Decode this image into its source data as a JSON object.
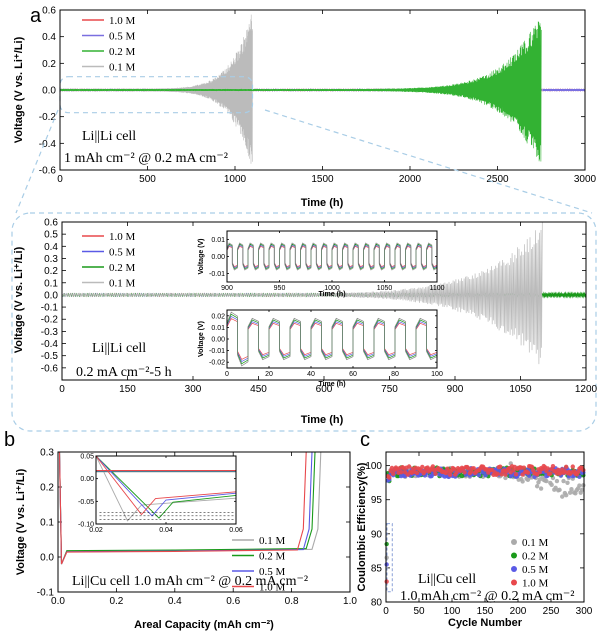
{
  "chart_data": [
    {
      "panel_label": "a",
      "type": "line",
      "xlabel": "Time (h)",
      "ylabel": "Voltage (V vs. Li⁺/Li)",
      "xlim": [
        0,
        3000
      ],
      "ylim": [
        -0.6,
        0.6
      ],
      "xticks": [
        "0",
        "500",
        "1000",
        "1500",
        "2000",
        "2500",
        "3000"
      ],
      "yticks": [
        "-0.6",
        "-0.4",
        "-0.2",
        "0.0",
        "0.2",
        "0.4",
        "0.6"
      ],
      "annotations": [
        "Li||Li cell",
        "1 mAh cm⁻² @ 0.2 mA cm⁻²"
      ],
      "legend_position": "top-left",
      "series": [
        {
          "name": "1.0 M",
          "color": "#e8484c",
          "failure_time_h": 3000,
          "max_amplitude_v": 0.008
        },
        {
          "name": "0.5 M",
          "color": "#7a6fe0",
          "failure_time_h": 3000,
          "max_amplitude_v": 0.008
        },
        {
          "name": "0.2 M",
          "color": "#33b233",
          "failure_time_h": 2750,
          "max_amplitude_v": 0.6
        },
        {
          "name": "0.1 M",
          "color": "#bbbbbb",
          "failure_time_h": 1100,
          "max_amplitude_v": 0.6
        }
      ]
    },
    {
      "type": "line",
      "xlabel": "Time (h)",
      "ylabel": "Voltage (V vs. Li⁺/Li)",
      "xlim": [
        0,
        1200
      ],
      "ylim": [
        -0.7,
        0.6
      ],
      "xticks": [
        "0",
        "150",
        "300",
        "450",
        "600",
        "750",
        "900",
        "1050",
        "1200"
      ],
      "yticks": [
        "-0.6",
        "-0.5",
        "-0.4",
        "-0.3",
        "-0.2",
        "-0.1",
        "0.0",
        "0.1",
        "0.2",
        "0.3",
        "0.4",
        "0.5",
        "0.6"
      ],
      "annotations": [
        "Li||Li cell",
        "0.2 mA cm⁻²-5 h"
      ],
      "legend_position": "top-left",
      "series": [
        {
          "name": "1.0 M",
          "color": "#e8484c"
        },
        {
          "name": "0.5 M",
          "color": "#5a5ae6"
        },
        {
          "name": "0.2 M",
          "color": "#1a9a1a"
        },
        {
          "name": "0.1 M",
          "color": "#bbbbbb",
          "failure_time_h": 1100,
          "max_amplitude_v": 0.6
        }
      ],
      "insets": [
        {
          "xlabel": "Time (h)",
          "ylabel": "Voltage (V)",
          "xlim": [
            900,
            1100
          ],
          "ylim": [
            -0.015,
            0.015
          ],
          "xticks": [
            "900",
            "950",
            "1000",
            "1050",
            "1100"
          ],
          "yticks": [
            "0.01",
            "0.00",
            "-0.01"
          ]
        },
        {
          "xlabel": "Time (h)",
          "ylabel": "Voltage (V)",
          "xlim": [
            0,
            100
          ],
          "ylim": [
            -0.025,
            0.025
          ],
          "xticks": [
            "0",
            "20",
            "40",
            "60",
            "80",
            "100"
          ],
          "yticks": [
            "0.02",
            "0.01",
            "0.00",
            "-0.01",
            "-0.02"
          ]
        }
      ]
    },
    {
      "panel_label": "b",
      "type": "line",
      "xlabel": "Areal Capacity (mAh cm⁻²)",
      "ylabel": "Voltage (V vs. Li⁺/Li)",
      "xlim": [
        0.0,
        1.0
      ],
      "ylim": [
        -0.1,
        0.3
      ],
      "xticks": [
        "0.0",
        "0.2",
        "0.4",
        "0.6",
        "0.8",
        "1.0"
      ],
      "yticks": [
        "-0.1",
        "0.0",
        "0.1",
        "0.2",
        "0.3"
      ],
      "annotations": [
        "Li||Cu cell  1.0 mAh cm⁻² @ 0.2 mA cm⁻²"
      ],
      "legend_position": "right",
      "series": [
        {
          "name": "0.1 M",
          "color": "#aaaaaa",
          "x": [
            0.0,
            0.02,
            0.04,
            0.1,
            0.5,
            0.85,
            0.88,
            0.9
          ],
          "y": [
            -0.02,
            -0.075,
            -0.03,
            -0.028,
            -0.025,
            -0.022,
            0.1,
            0.3
          ],
          "charge_plateau_v": 0.018,
          "charge_end": 0.9
        },
        {
          "name": "0.2 M",
          "color": "#1a9a1a",
          "x": [
            0.0,
            0.02,
            0.04,
            0.1,
            0.5,
            0.84,
            0.86,
            0.88
          ],
          "y": [
            -0.02,
            -0.08,
            -0.025,
            -0.024,
            -0.022,
            -0.02,
            0.1,
            0.3
          ],
          "charge_plateau_v": 0.02,
          "charge_end": 0.88
        },
        {
          "name": "0.5 M",
          "color": "#5a5ae6",
          "x": [
            0.0,
            0.02,
            0.04,
            0.1,
            0.5,
            0.83,
            0.85,
            0.87
          ],
          "y": [
            -0.02,
            -0.07,
            -0.024,
            -0.023,
            -0.021,
            -0.02,
            0.1,
            0.3
          ],
          "charge_plateau_v": 0.017,
          "charge_end": 0.87
        },
        {
          "name": "1.0 M",
          "color": "#e8484c",
          "x": [
            0.0,
            0.02,
            0.04,
            0.1,
            0.5,
            0.8,
            0.83,
            0.85
          ],
          "y": [
            -0.02,
            -0.065,
            -0.022,
            -0.021,
            -0.02,
            -0.019,
            0.1,
            0.3
          ],
          "charge_plateau_v": 0.016,
          "charge_end": 0.85
        }
      ],
      "inset": {
        "xlim": [
          0.02,
          0.06
        ],
        "ylim": [
          -0.1,
          0.05
        ],
        "xticks": [
          "0.02",
          "0.04",
          "0.06"
        ],
        "yticks": [
          "0.05",
          "0.00",
          "-0.05",
          "-0.10"
        ]
      }
    },
    {
      "panel_label": "c",
      "type": "scatter",
      "xlabel": "Cycle Number",
      "ylabel": "Coulombic Efficiency(%)",
      "xlim": [
        0,
        300
      ],
      "ylim": [
        80,
        102
      ],
      "xticks": [
        "0",
        "50",
        "100",
        "150",
        "200",
        "250",
        "300"
      ],
      "yticks": [
        "80",
        "85",
        "90",
        "95",
        "100"
      ],
      "annotations": [
        "Li||Cu cell",
        "1.0 mAh cm⁻² @ 0.2 mA cm⁻²"
      ],
      "legend_position": "right",
      "series": [
        {
          "name": "0.1 M",
          "color": "#aaaaaa",
          "first_cycle_ce": 86.5,
          "plateau_ce": 99.0,
          "end_ce": 96.0,
          "cycles": 300
        },
        {
          "name": "0.2 M",
          "color": "#1a9a1a",
          "first_cycle_ce": 88.5,
          "plateau_ce": 99.1,
          "end_ce": 99.0,
          "cycles": 300
        },
        {
          "name": "0.5 M",
          "color": "#5a5ae6",
          "first_cycle_ce": 85.5,
          "plateau_ce": 99.0,
          "end_ce": 99.0,
          "cycles": 300
        },
        {
          "name": "1.0 M",
          "color": "#e8484c",
          "first_cycle_ce": 83.0,
          "plateau_ce": 99.3,
          "end_ce": 99.2,
          "cycles": 300
        }
      ]
    }
  ]
}
